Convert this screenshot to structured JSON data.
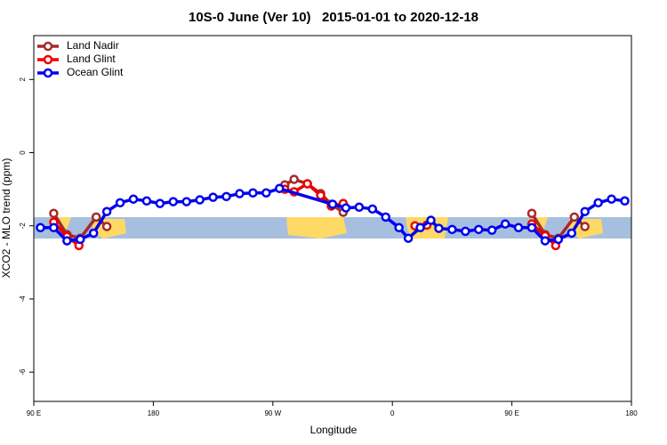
{
  "chart_data": {
    "type": "line",
    "title": "10S-0 June (Ver 10)   2015-01-01 to 2020-12-18",
    "xlabel": "Longitude",
    "ylabel": "XCO2 - MLO trend (ppm)",
    "xlim": [
      90,
      540
    ],
    "ylim": [
      -6.8,
      3.2
    ],
    "xticks": [
      {
        "value": 90,
        "label": "90 E"
      },
      180,
      {
        "value": 270,
        "label": "90 W"
      },
      {
        "value": 360,
        "label": "0"
      },
      {
        "value": 450,
        "label": "90 E"
      },
      {
        "value": 540,
        "label": "180"
      }
    ],
    "yticks": [
      2,
      0,
      -2,
      -4,
      -6
    ],
    "legend": "top-left",
    "series": [
      {
        "name": "Land Nadir",
        "color": "#a52a2a",
        "x": [
          105,
          115,
          125,
          137,
          145,
          null,
          279,
          286,
          296,
          306,
          314,
          323,
          null,
          465,
          475,
          485,
          497,
          505
        ],
        "values": [
          -1.66,
          -2.24,
          -2.34,
          -1.76,
          -2.02,
          null,
          -0.88,
          -0.73,
          -0.85,
          -1.12,
          -1.41,
          -1.63,
          null,
          -1.66,
          -2.24,
          -2.34,
          -1.76,
          -2.02
        ]
      },
      {
        "name": "Land Glint",
        "color": "#ee0000",
        "x": [
          105,
          115,
          124,
          null,
          279,
          286,
          296,
          306,
          314,
          323,
          null,
          377,
          386,
          null,
          465,
          475,
          483
        ],
        "values": [
          -1.9,
          -2.29,
          -2.54,
          null,
          -1.0,
          -1.07,
          -0.85,
          -1.17,
          -1.46,
          -1.39,
          null,
          -2.0,
          -1.98,
          null,
          -1.95,
          -2.27,
          -2.54
        ]
      },
      {
        "name": "Ocean Glint",
        "color": "#0000ee",
        "x": [
          95,
          105,
          115,
          125,
          135,
          145,
          155,
          165,
          175,
          185,
          195,
          205,
          215,
          225,
          235,
          245,
          255,
          265,
          275,
          315,
          325,
          335,
          345,
          355,
          365,
          372,
          381,
          389,
          395,
          405,
          415,
          425,
          435,
          445,
          455,
          465,
          475,
          485,
          495,
          505,
          515,
          525,
          535
        ],
        "values": [
          -2.05,
          -2.05,
          -2.41,
          -2.37,
          -2.2,
          -1.61,
          -1.37,
          -1.27,
          -1.32,
          -1.39,
          -1.34,
          -1.34,
          -1.29,
          -1.22,
          -1.2,
          -1.12,
          -1.1,
          -1.1,
          -0.98,
          -1.41,
          -1.51,
          -1.49,
          -1.54,
          -1.76,
          -2.05,
          -2.34,
          -2.05,
          -1.85,
          -2.07,
          -2.1,
          -2.15,
          -2.1,
          -2.12,
          -1.95,
          -2.05,
          -2.05,
          -2.41,
          -2.37,
          -2.2,
          -1.61,
          -1.37,
          -1.27,
          -1.32
        ]
      }
    ]
  }
}
